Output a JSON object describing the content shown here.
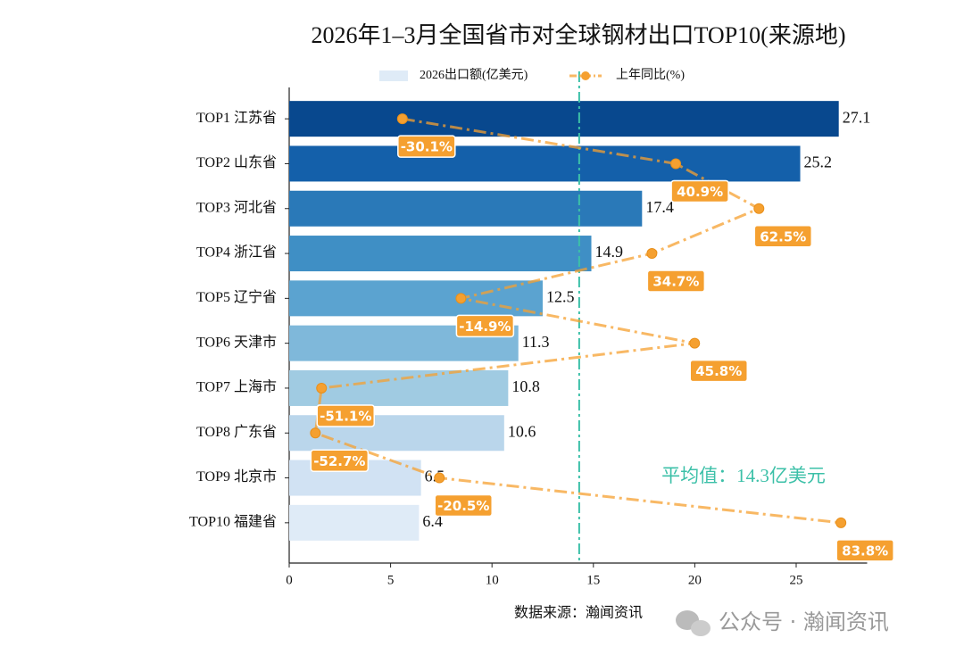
{
  "chart_data": {
    "type": "bar",
    "orientation": "horizontal",
    "title": "2026年1–3月全国省市对全球钢材出口TOP10(来源地)",
    "categories": [
      "TOP1 江苏省",
      "TOP2 山东省",
      "TOP3 河北省",
      "TOP4 浙江省",
      "TOP5 辽宁省",
      "TOP6 天津市",
      "TOP7 上海市",
      "TOP8 广东省",
      "TOP9 北京市",
      "TOP10 福建省"
    ],
    "series": [
      {
        "name": "2026出口额(亿美元)",
        "type": "bar",
        "colors": [
          "#08488e",
          "#1460aa",
          "#2a79b8",
          "#3f8fc5",
          "#5ba3d0",
          "#7fb8da",
          "#a0cbe2",
          "#bad6eb",
          "#d1e2f3",
          "#dfebf7"
        ],
        "values": [
          27.1,
          25.2,
          17.4,
          14.9,
          12.5,
          11.3,
          10.8,
          10.6,
          6.5,
          6.4
        ]
      },
      {
        "name": "上年同比(%)",
        "type": "line",
        "axis": "x2",
        "color": "#f5a030",
        "values": [
          -30.1,
          40.9,
          62.5,
          34.7,
          -14.9,
          45.8,
          -51.1,
          -52.7,
          -20.5,
          83.8
        ],
        "value_labels": [
          "-30.1%",
          "40.9%",
          "62.5%",
          "34.7%",
          "-14.9%",
          "45.8%",
          "-51.1%",
          "-52.7%",
          "-20.5%",
          "83.8%"
        ]
      }
    ],
    "xlim": [
      0,
      28.5
    ],
    "xticks": [
      0,
      5,
      10,
      15,
      20,
      25
    ],
    "x2lim": [
      -59.5,
      90.6
    ],
    "average": {
      "value": 14.3,
      "label": "平均值：14.3亿美元",
      "color": "#3cc0a8"
    },
    "legend": "upper center",
    "source": "数据来源：瀚闻资讯",
    "watermark": "公众号 · 瀚闻资讯"
  }
}
